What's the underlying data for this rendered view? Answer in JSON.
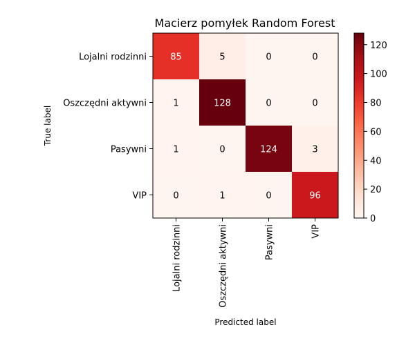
{
  "chart_data": {
    "type": "heatmap",
    "title": "Macierz pomyłek Random Forest",
    "xlabel": "Predicted label",
    "ylabel": "True label",
    "x_categories": [
      "Lojalni rodzinni",
      "Oszczędni aktywni",
      "Pasywni",
      "VIP"
    ],
    "y_categories": [
      "Lojalni rodzinni",
      "Oszczędni aktywni",
      "Pasywni",
      "VIP"
    ],
    "values": [
      [
        85,
        5,
        0,
        0
      ],
      [
        1,
        128,
        0,
        0
      ],
      [
        1,
        0,
        124,
        3
      ],
      [
        0,
        1,
        0,
        96
      ]
    ],
    "colormap": "Reds",
    "vmin": 0,
    "vmax": 128,
    "colorbar_ticks": [
      0,
      20,
      40,
      60,
      80,
      100,
      120
    ]
  }
}
